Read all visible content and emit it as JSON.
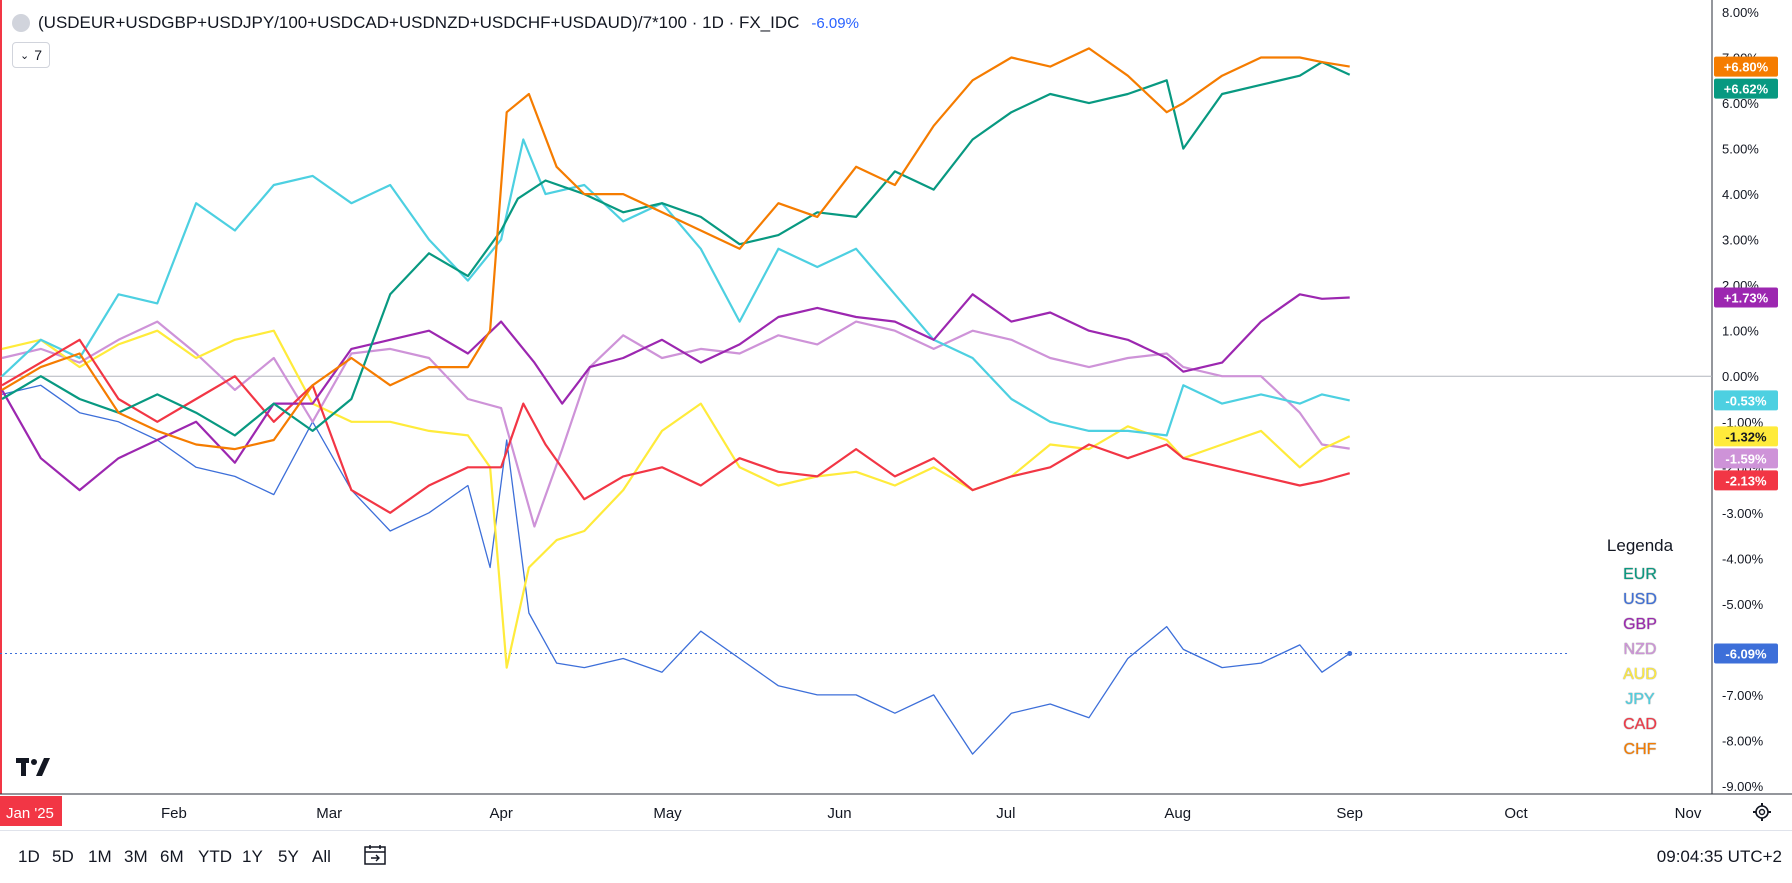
{
  "header": {
    "title": "(USDEUR+USDGBP+USDJPY/100+USDCAD+USDNZD+USDCHF+USDAUD)/7*100 · 1D · FX_IDC",
    "change": "-6.09%",
    "collapse_label": "7"
  },
  "legend": {
    "title": "Legenda",
    "items": [
      "EUR",
      "USD",
      "GBP",
      "NZD",
      "AUD",
      "JPY",
      "CAD",
      "CHF"
    ]
  },
  "toolbar": {
    "ranges": [
      "1D",
      "5D",
      "1M",
      "3M",
      "6M",
      "YTD",
      "1Y",
      "5Y",
      "All"
    ],
    "clock": "09:04:35 UTC+2",
    "calendar_icon": "calendar-goto-icon",
    "settings_icon": "gear-icon"
  },
  "colors": {
    "EUR": "#089981",
    "USD": "#3d6fd9",
    "GBP": "#9c27b0",
    "NZD": "#ce93d8",
    "AUD": "#ffeb3b",
    "JPY": "#4dd0e1",
    "CAD": "#f23645",
    "CHF": "#f57c00",
    "axis": "#131722",
    "grid_zero": "#b2b5be",
    "accent": "#2962ff"
  },
  "chart_data": {
    "type": "line",
    "y_unit": "%",
    "ylim": [
      -9.0,
      8.0
    ],
    "y_ticks": [
      "8.00%",
      "7.00%",
      "6.00%",
      "5.00%",
      "4.00%",
      "3.00%",
      "2.00%",
      "1.00%",
      "0.00%",
      "-1.00%",
      "-2.00%",
      "-3.00%",
      "-4.00%",
      "-5.00%",
      "-6.00%",
      "-7.00%",
      "-8.00%",
      "-9.00%"
    ],
    "x_ticks": [
      "Jan '25",
      "Feb",
      "Mar",
      "Apr",
      "May",
      "Jun",
      "Jul",
      "Aug",
      "Sep",
      "Oct",
      "Nov"
    ],
    "x_label_positions_days": [
      0,
      31,
      59,
      90,
      120,
      151,
      181,
      212,
      243,
      273,
      304
    ],
    "xlim_days": [
      0,
      310
    ],
    "baseline": 0.0,
    "badges": [
      {
        "series": "CHF",
        "text": "+6.80%"
      },
      {
        "series": "EUR",
        "text": "+6.62%"
      },
      {
        "series": "GBP",
        "text": "+1.73%"
      },
      {
        "series": "JPY",
        "text": "-0.53%"
      },
      {
        "series": "AUD",
        "text": "-1.32%"
      },
      {
        "series": "NZD",
        "text": "-1.59%"
      },
      {
        "series": "CAD",
        "text": "-2.13%"
      },
      {
        "series": "USD",
        "text": "-6.09%"
      }
    ],
    "series": [
      {
        "name": "EUR",
        "x": [
          0,
          7,
          14,
          21,
          28,
          35,
          42,
          49,
          56,
          63,
          70,
          77,
          84,
          90,
          93,
          98,
          105,
          112,
          119,
          126,
          133,
          140,
          147,
          154,
          161,
          168,
          175,
          182,
          189,
          196,
          203,
          210,
          213,
          220,
          227,
          234,
          238,
          243
        ],
        "values": [
          -0.5,
          0,
          -0.5,
          -0.8,
          -0.4,
          -0.8,
          -1.3,
          -0.6,
          -1.2,
          -0.5,
          1.8,
          2.7,
          2.2,
          3.2,
          3.9,
          4.3,
          4.0,
          3.6,
          3.8,
          3.5,
          2.9,
          3.1,
          3.6,
          3.5,
          4.5,
          4.1,
          5.2,
          5.8,
          6.2,
          6.0,
          6.2,
          6.5,
          5.0,
          6.2,
          6.4,
          6.6,
          6.9,
          6.62
        ]
      },
      {
        "name": "USD",
        "x": [
          0,
          7,
          14,
          21,
          28,
          35,
          42,
          49,
          56,
          63,
          70,
          77,
          84,
          88,
          91,
          95,
          100,
          105,
          112,
          119,
          126,
          133,
          140,
          147,
          154,
          161,
          168,
          175,
          182,
          189,
          196,
          203,
          210,
          213,
          220,
          227,
          234,
          238,
          243
        ],
        "values": [
          -0.4,
          -0.2,
          -0.8,
          -1.0,
          -1.4,
          -2.0,
          -2.2,
          -2.6,
          -1.0,
          -2.5,
          -3.4,
          -3.0,
          -2.4,
          -4.2,
          -1.4,
          -5.2,
          -6.3,
          -6.4,
          -6.2,
          -6.5,
          -5.6,
          -6.2,
          -6.8,
          -7.0,
          -7.0,
          -7.4,
          -7.0,
          -8.3,
          -7.4,
          -7.2,
          -7.5,
          -6.2,
          -5.5,
          -6.0,
          -6.4,
          -6.3,
          -5.9,
          -6.5,
          -6.09
        ]
      },
      {
        "name": "GBP",
        "x": [
          0,
          7,
          14,
          21,
          28,
          35,
          42,
          49,
          56,
          63,
          70,
          77,
          84,
          90,
          96,
          101,
          106,
          112,
          119,
          126,
          133,
          140,
          147,
          154,
          161,
          168,
          175,
          182,
          189,
          196,
          203,
          210,
          213,
          220,
          227,
          234,
          238,
          243
        ],
        "values": [
          -0.3,
          -1.8,
          -2.5,
          -1.8,
          -1.4,
          -1.0,
          -1.9,
          -0.6,
          -0.6,
          0.6,
          0.8,
          1.0,
          0.5,
          1.2,
          0.3,
          -0.6,
          0.2,
          0.4,
          0.8,
          0.3,
          0.7,
          1.3,
          1.5,
          1.3,
          1.2,
          0.8,
          1.8,
          1.2,
          1.4,
          1.0,
          0.8,
          0.4,
          0.1,
          0.3,
          1.2,
          1.8,
          1.7,
          1.73
        ]
      },
      {
        "name": "NZD",
        "x": [
          0,
          7,
          14,
          21,
          28,
          35,
          42,
          49,
          56,
          63,
          70,
          77,
          84,
          90,
          96,
          101,
          106,
          112,
          119,
          126,
          133,
          140,
          147,
          154,
          161,
          168,
          175,
          182,
          189,
          196,
          203,
          210,
          213,
          220,
          227,
          234,
          238,
          243
        ],
        "values": [
          0.4,
          0.6,
          0.3,
          0.8,
          1.2,
          0.5,
          -0.3,
          0.4,
          -1.0,
          0.5,
          0.6,
          0.4,
          -0.5,
          -0.7,
          -3.3,
          -1.6,
          0.2,
          0.9,
          0.4,
          0.6,
          0.5,
          0.9,
          0.7,
          1.2,
          1.0,
          0.6,
          1.0,
          0.8,
          0.4,
          0.2,
          0.4,
          0.5,
          0.2,
          0.0,
          0.0,
          -0.8,
          -1.5,
          -1.59
        ]
      },
      {
        "name": "AUD",
        "x": [
          0,
          7,
          14,
          21,
          28,
          35,
          42,
          49,
          56,
          63,
          70,
          77,
          84,
          88,
          91,
          95,
          100,
          105,
          112,
          119,
          126,
          133,
          140,
          147,
          154,
          161,
          168,
          175,
          182,
          189,
          196,
          203,
          210,
          213,
          220,
          227,
          234,
          238,
          243
        ],
        "values": [
          0.6,
          0.8,
          0.2,
          0.7,
          1.0,
          0.4,
          0.8,
          1.0,
          -0.6,
          -1.0,
          -1.0,
          -1.2,
          -1.3,
          -2.0,
          -6.4,
          -4.2,
          -3.6,
          -3.4,
          -2.5,
          -1.2,
          -0.6,
          -2.0,
          -2.4,
          -2.2,
          -2.1,
          -2.4,
          -2.0,
          -2.5,
          -2.2,
          -1.5,
          -1.6,
          -1.1,
          -1.4,
          -1.8,
          -1.5,
          -1.2,
          -2.0,
          -1.6,
          -1.32
        ]
      },
      {
        "name": "JPY",
        "x": [
          0,
          7,
          14,
          21,
          28,
          35,
          42,
          49,
          56,
          63,
          70,
          77,
          84,
          90,
          94,
          98,
          105,
          112,
          119,
          126,
          133,
          140,
          147,
          154,
          161,
          168,
          175,
          182,
          189,
          196,
          203,
          210,
          213,
          220,
          227,
          234,
          238,
          243
        ],
        "values": [
          0.0,
          0.8,
          0.4,
          1.8,
          1.6,
          3.8,
          3.2,
          4.2,
          4.4,
          3.8,
          4.2,
          3.0,
          2.1,
          3.0,
          5.2,
          4.0,
          4.2,
          3.4,
          3.8,
          2.8,
          1.2,
          2.8,
          2.4,
          2.8,
          1.8,
          0.8,
          0.4,
          -0.5,
          -1.0,
          -1.2,
          -1.2,
          -1.3,
          -0.2,
          -0.6,
          -0.4,
          -0.6,
          -0.4,
          -0.53
        ]
      },
      {
        "name": "CAD",
        "x": [
          0,
          7,
          14,
          21,
          28,
          35,
          42,
          49,
          56,
          63,
          70,
          77,
          84,
          90,
          94,
          98,
          105,
          112,
          119,
          126,
          133,
          140,
          147,
          154,
          161,
          168,
          175,
          182,
          189,
          196,
          203,
          210,
          213,
          220,
          227,
          234,
          238,
          243
        ],
        "values": [
          -0.2,
          0.3,
          0.8,
          -0.5,
          -1.0,
          -0.5,
          0.0,
          -1.0,
          -0.2,
          -2.5,
          -3.0,
          -2.4,
          -2.0,
          -2.0,
          -0.6,
          -1.5,
          -2.7,
          -2.2,
          -2.0,
          -2.4,
          -1.8,
          -2.1,
          -2.2,
          -1.6,
          -2.2,
          -1.8,
          -2.5,
          -2.2,
          -2.0,
          -1.5,
          -1.8,
          -1.5,
          -1.8,
          -2.0,
          -2.2,
          -2.4,
          -2.3,
          -2.13
        ]
      },
      {
        "name": "CHF",
        "x": [
          0,
          7,
          14,
          21,
          28,
          35,
          42,
          49,
          56,
          63,
          70,
          77,
          84,
          88,
          91,
          95,
          100,
          105,
          112,
          119,
          126,
          133,
          140,
          147,
          154,
          161,
          168,
          175,
          182,
          189,
          196,
          203,
          210,
          213,
          220,
          227,
          234,
          238,
          243
        ],
        "values": [
          -0.3,
          0.2,
          0.5,
          -0.8,
          -1.2,
          -1.5,
          -1.6,
          -1.4,
          -0.2,
          0.4,
          -0.2,
          0.2,
          0.2,
          1.0,
          5.8,
          6.2,
          4.6,
          4.0,
          4.0,
          3.6,
          3.2,
          2.8,
          3.8,
          3.5,
          4.6,
          4.2,
          5.5,
          6.5,
          7.0,
          6.8,
          7.2,
          6.6,
          5.8,
          6.0,
          6.6,
          7.0,
          7.0,
          6.9,
          6.8
        ]
      }
    ]
  }
}
